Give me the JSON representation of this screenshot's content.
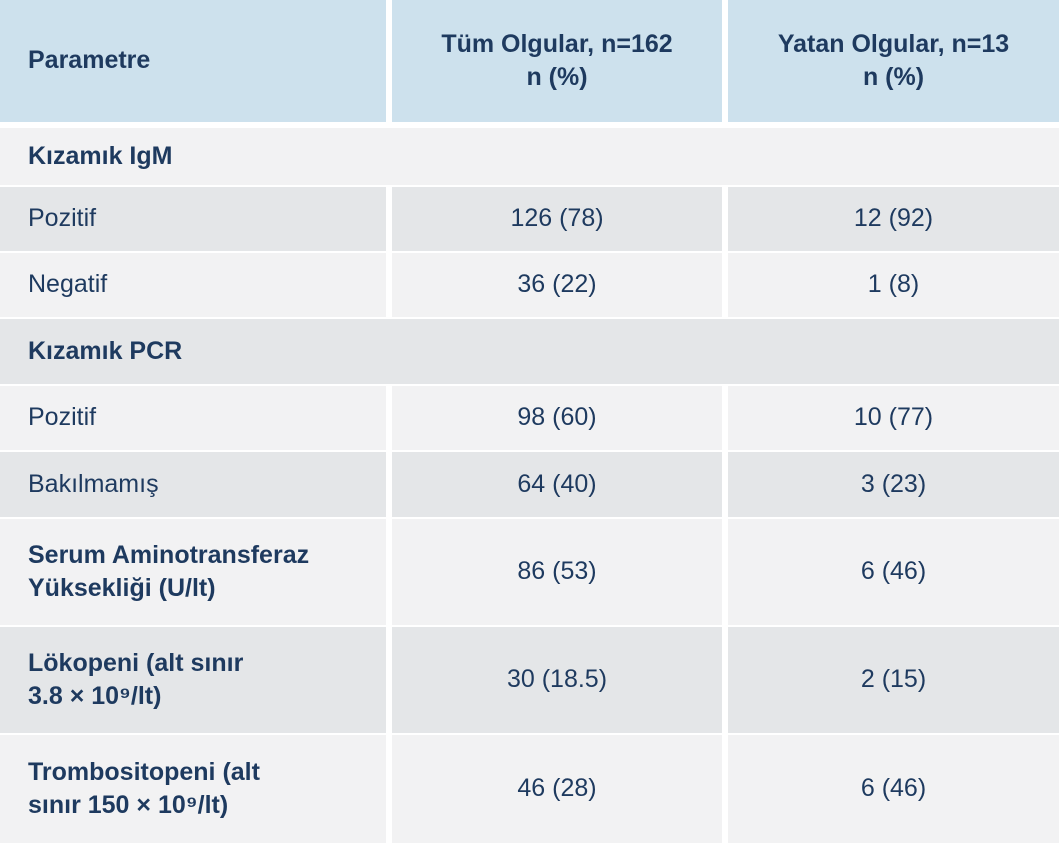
{
  "colors": {
    "header_bg": "#cde1ed",
    "row_light": "#f2f2f3",
    "row_dark": "#e4e6e8",
    "text": "#1e3a5f",
    "separator": "#ffffff"
  },
  "table": {
    "columns": [
      {
        "label": "Parametre"
      },
      {
        "label": "Tüm Olgular, n=162\nn (%)"
      },
      {
        "label": "Yatan Olgular, n=13\nn (%)"
      }
    ],
    "rows": [
      {
        "type": "section",
        "label": "Kızamık IgM"
      },
      {
        "type": "data",
        "label": "Pozitif",
        "tum": "126 (78)",
        "yatan": "12 (92)"
      },
      {
        "type": "data",
        "label": "Negatif",
        "tum": "36 (22)",
        "yatan": "1 (8)"
      },
      {
        "type": "section",
        "label": "Kızamık PCR"
      },
      {
        "type": "data",
        "label": "Pozitif",
        "tum": "98 (60)",
        "yatan": "10 (77)"
      },
      {
        "type": "data",
        "label": "Bakılmamış",
        "tum": "64 (40)",
        "yatan": "3 (23)"
      },
      {
        "type": "data",
        "label": "Serum Aminotransferaz\nYüksekliği (U/lt)",
        "tum": "86 (53)",
        "yatan": "6 (46)"
      },
      {
        "type": "data",
        "label": "Lökopeni (alt sınır\n3.8 × 10⁹/lt)",
        "tum": "30 (18.5)",
        "yatan": "2 (15)"
      },
      {
        "type": "data",
        "label": "Trombositopeni (alt\nsınır 150 × 10⁹/lt)",
        "tum": "46 (28)",
        "yatan": "6 (46)"
      }
    ]
  }
}
